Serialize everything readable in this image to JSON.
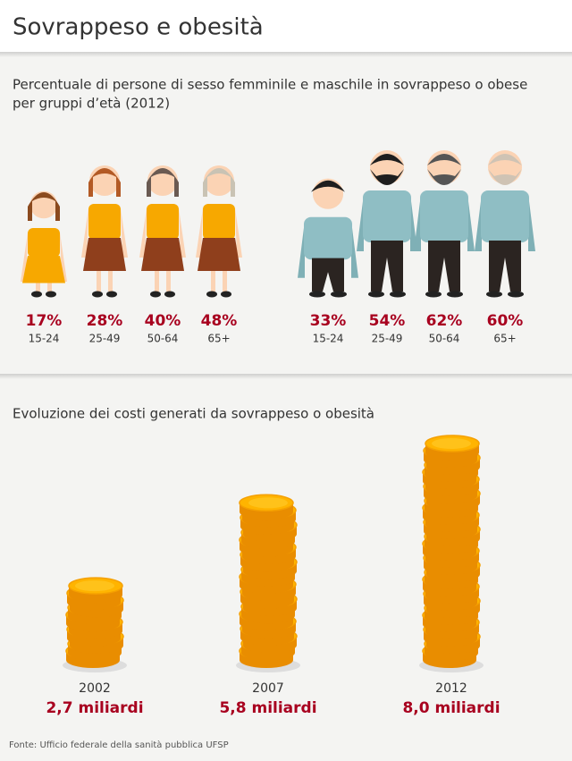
{
  "header": {
    "title": "Sovrappeso e obesità"
  },
  "groups": {
    "subtitle_line1": "Percentuale di persone di sesso femminile e maschile in sovrappeso o obese",
    "subtitle_line2": "per gruppi d’età (2012)",
    "women": [
      {
        "percent": "17%",
        "age": "15-24"
      },
      {
        "percent": "28%",
        "age": "25-49"
      },
      {
        "percent": "40%",
        "age": "50-64"
      },
      {
        "percent": "48%",
        "age": "65+"
      }
    ],
    "men": [
      {
        "percent": "33%",
        "age": "15-24"
      },
      {
        "percent": "54%",
        "age": "25-49"
      },
      {
        "percent": "62%",
        "age": "50-64"
      },
      {
        "percent": "60%",
        "age": "65+"
      }
    ]
  },
  "costs": {
    "title": "Evoluzione dei costi generati da sovrappeso o obesità",
    "items": [
      {
        "year": "2002",
        "value": 2.7,
        "label": "2,7 miliardi"
      },
      {
        "year": "2007",
        "value": 5.8,
        "label": "5,8 miliardi"
      },
      {
        "year": "2012",
        "value": 8.0,
        "label": "8,0 miliardi"
      }
    ]
  },
  "source": "Fonte: Ufficio federale della sanità pubblica UFSP"
}
